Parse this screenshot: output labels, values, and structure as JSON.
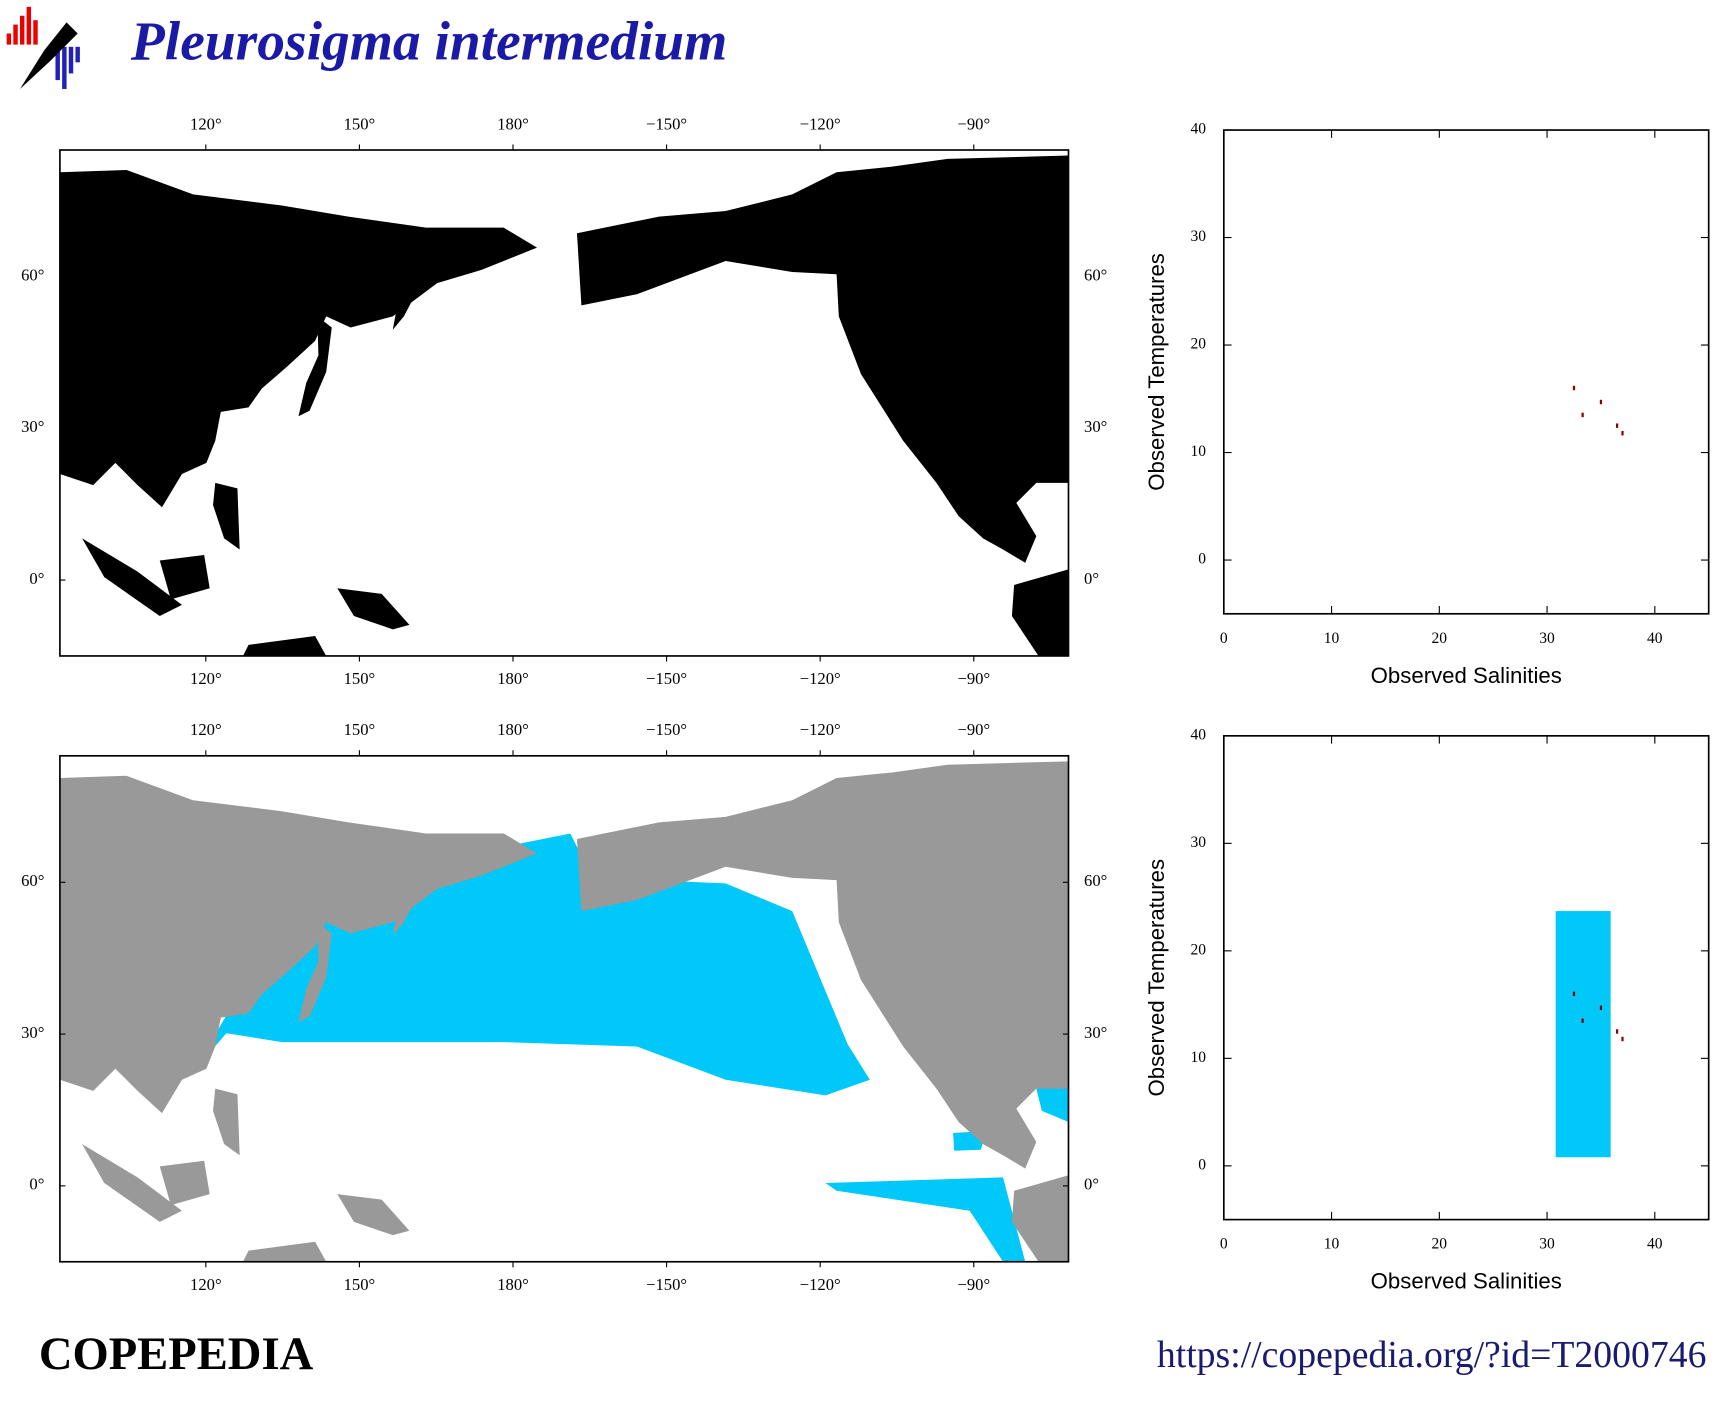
{
  "title": "Pleurosigma intermedium",
  "maps": [
    {
      "lonlim": [
        91.5,
        -71.5
      ],
      "latlim": [
        -15,
        85
      ],
      "lon_ticks": [
        {
          "value": 120,
          "label": "120°"
        },
        {
          "value": 150,
          "label": "150°"
        },
        {
          "value": 180,
          "label": "180°"
        },
        {
          "value": -150,
          "label": "−150°"
        },
        {
          "value": -120,
          "label": "−120°"
        },
        {
          "value": -90,
          "label": "−90°"
        }
      ],
      "lat_ticks": [
        {
          "value": 60,
          "label": "60°"
        },
        {
          "value": 30,
          "label": "30°"
        },
        {
          "value": 0,
          "label": "0°"
        }
      ],
      "land_color": "#000000"
    },
    {
      "lonlim": [
        91.5,
        -71.5
      ],
      "latlim": [
        -15,
        85
      ],
      "lon_ticks": [
        {
          "value": 120,
          "label": "120°"
        },
        {
          "value": 150,
          "label": "150°"
        },
        {
          "value": 180,
          "label": "180°"
        },
        {
          "value": -150,
          "label": "−150°"
        },
        {
          "value": -120,
          "label": "−120°"
        },
        {
          "value": -90,
          "label": "−90°"
        }
      ],
      "lat_ticks": [
        {
          "value": 60,
          "label": "60°"
        },
        {
          "value": 30,
          "label": "30°"
        },
        {
          "value": 0,
          "label": "0°"
        }
      ],
      "land_color": "#999999",
      "range_color": "#00c8f8"
    }
  ],
  "plots": [
    {
      "type": "scatter",
      "xlabel": "Observed Salinities",
      "ylabel": "Observed Temperatures",
      "xlim": [
        0,
        45
      ],
      "ylim": [
        -5,
        40
      ],
      "xticks": [
        0,
        10,
        20,
        30,
        40
      ],
      "yticks": [
        0,
        10,
        20,
        30,
        40
      ],
      "points": {
        "x": [
          32.5,
          33.3,
          35,
          36.5,
          37
        ],
        "y": [
          16,
          13.5,
          14.7,
          12.5,
          11.8
        ],
        "color": "#8b0000"
      }
    },
    {
      "type": "scatter",
      "xlabel": "Observed Salinities",
      "ylabel": "Observed Temperatures",
      "xlim": [
        0,
        45
      ],
      "ylim": [
        -5,
        40
      ],
      "xticks": [
        0,
        10,
        20,
        30,
        40
      ],
      "yticks": [
        0,
        10,
        20,
        30,
        40
      ],
      "range_box": {
        "x": [
          30.8,
          35.9
        ],
        "y": [
          0.8,
          23.7
        ],
        "color": "#00c8f8"
      },
      "points": {
        "x": [
          32.5,
          33.3,
          35,
          36.5,
          37
        ],
        "y": [
          16,
          13.5,
          14.7,
          12.5,
          11.8
        ],
        "color": "#8b0000"
      }
    }
  ],
  "footer": {
    "brand": "COPEPEDIA",
    "url": "https://copepedia.org/?id=T2000746"
  }
}
